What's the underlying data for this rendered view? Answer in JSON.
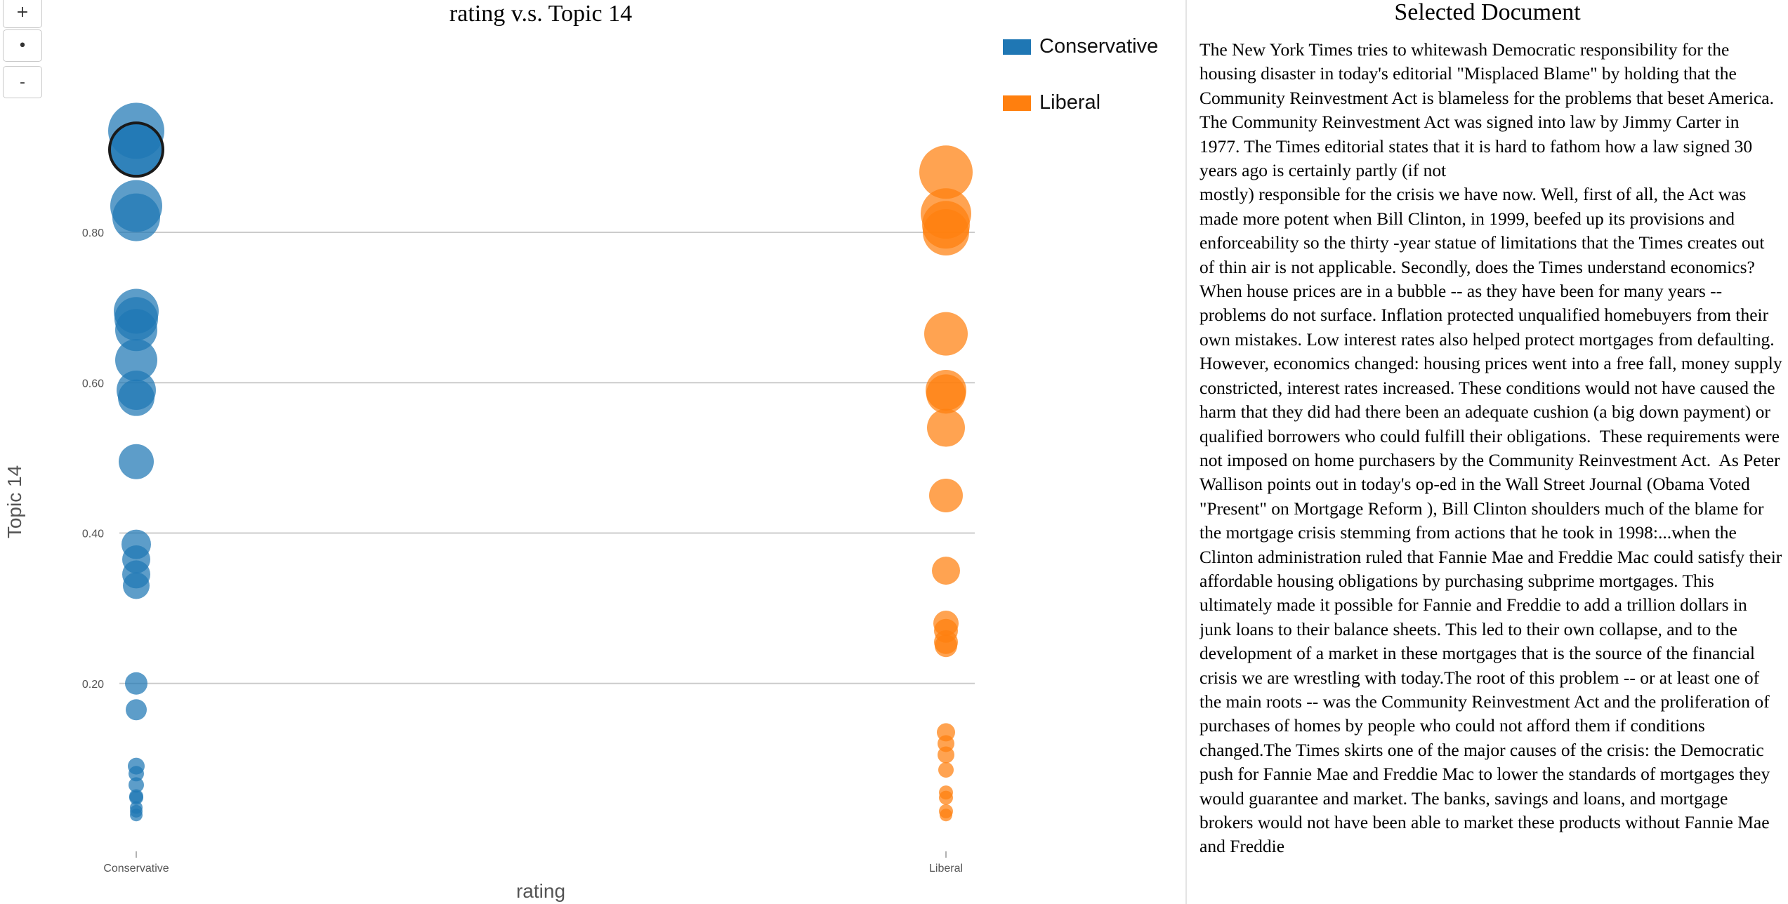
{
  "zoom_controls": {
    "zoom_in": "+",
    "reset": "•",
    "zoom_out": "-"
  },
  "chart_data": {
    "type": "scatter",
    "title": "rating v.s. Topic 14",
    "xlabel": "rating",
    "ylabel": "Topic 14",
    "categories": [
      "Conservative",
      "Liberal"
    ],
    "yticks": [
      "0.20",
      "0.40",
      "0.60",
      "0.80"
    ],
    "ylim": [
      0,
      1.02
    ],
    "grid": "horizontal",
    "legend_position": "top-right",
    "series": [
      {
        "name": "Conservative",
        "color": "#1f77b4",
        "category": "Conservative",
        "points": [
          {
            "y": 0.935,
            "size": 40
          },
          {
            "y": 0.91,
            "size": 38,
            "selected": true
          },
          {
            "y": 0.835,
            "size": 37
          },
          {
            "y": 0.82,
            "size": 34
          },
          {
            "y": 0.695,
            "size": 32
          },
          {
            "y": 0.685,
            "size": 31
          },
          {
            "y": 0.67,
            "size": 30
          },
          {
            "y": 0.63,
            "size": 30
          },
          {
            "y": 0.59,
            "size": 28
          },
          {
            "y": 0.58,
            "size": 26
          },
          {
            "y": 0.495,
            "size": 25
          },
          {
            "y": 0.385,
            "size": 21
          },
          {
            "y": 0.365,
            "size": 20
          },
          {
            "y": 0.345,
            "size": 20
          },
          {
            "y": 0.33,
            "size": 19
          },
          {
            "y": 0.2,
            "size": 16
          },
          {
            "y": 0.165,
            "size": 15
          },
          {
            "y": 0.09,
            "size": 12
          },
          {
            "y": 0.08,
            "size": 11
          },
          {
            "y": 0.065,
            "size": 11
          },
          {
            "y": 0.05,
            "size": 10
          },
          {
            "y": 0.048,
            "size": 10
          },
          {
            "y": 0.035,
            "size": 9
          },
          {
            "y": 0.03,
            "size": 9
          },
          {
            "y": 0.025,
            "size": 9
          }
        ]
      },
      {
        "name": "Liberal",
        "color": "#ff7f0e",
        "category": "Liberal",
        "points": [
          {
            "y": 0.88,
            "size": 38
          },
          {
            "y": 0.825,
            "size": 36
          },
          {
            "y": 0.81,
            "size": 34
          },
          {
            "y": 0.8,
            "size": 33
          },
          {
            "y": 0.665,
            "size": 31
          },
          {
            "y": 0.59,
            "size": 29
          },
          {
            "y": 0.585,
            "size": 28
          },
          {
            "y": 0.54,
            "size": 27
          },
          {
            "y": 0.45,
            "size": 24
          },
          {
            "y": 0.35,
            "size": 20
          },
          {
            "y": 0.28,
            "size": 18
          },
          {
            "y": 0.27,
            "size": 17
          },
          {
            "y": 0.255,
            "size": 17
          },
          {
            "y": 0.25,
            "size": 16
          },
          {
            "y": 0.135,
            "size": 13
          },
          {
            "y": 0.12,
            "size": 12
          },
          {
            "y": 0.105,
            "size": 12
          },
          {
            "y": 0.085,
            "size": 11
          },
          {
            "y": 0.055,
            "size": 10
          },
          {
            "y": 0.048,
            "size": 10
          },
          {
            "y": 0.03,
            "size": 10
          },
          {
            "y": 0.025,
            "size": 9
          }
        ]
      }
    ]
  },
  "document_panel": {
    "title": "Selected Document",
    "text": "The New York Times tries to whitewash Democratic responsibility for the housing disaster in today's editorial \"Misplaced Blame\" by holding that the Community Reinvestment Act is blameless for the problems that beset America. The Community Reinvestment Act was signed into law by Jimmy Carter in 1977. The Times editorial states that it is hard to fathom how a law signed 30 years ago is certainly partly (if not\nmostly) responsible for the crisis we have now. Well, first of all, the Act was made more potent when Bill Clinton, in 1999, beefed up its provisions and enforceability so the thirty -year statue of limitations that the Times creates out of thin air is not applicable. Secondly, does the Times understand economics? When house prices are in a bubble -- as they have been for many years -- problems do not surface. Inflation protected unqualified homebuyers from their own mistakes. Low interest rates also helped protect mortgages from defaulting. However, economics changed: housing prices went into a free fall, money supply constricted, interest rates increased. These conditions would not have caused the harm that they did had there been an adequate cushion (a big down payment) or qualified borrowers who could fulfill their obligations.  These requirements were not imposed on home purchasers by the Community Reinvestment Act.  As Peter Wallison points out in today's op-ed in the Wall Street Journal (Obama Voted \"Present\" on Mortgage Reform ), Bill Clinton shoulders much of the blame for the mortgage crisis stemming from actions that he took in 1998:...when the Clinton administration ruled that Fannie Mae and Freddie Mac could satisfy their affordable housing obligations by purchasing subprime mortgages. This ultimately made it possible for Fannie and Freddie to add a trillion dollars in junk loans to their balance sheets. This led to their own collapse, and to the development of a market in these mortgages that is the source of the financial crisis we are wrestling with today.The root of this problem -- or at least one of the main roots -- was the Community Reinvestment Act and the proliferation of purchases of homes by people who could not afford them if conditions changed.The Times skirts one of the major causes of the crisis: the Democratic push for Fannie Mae and Freddie Mac to lower the standards of mortgages they would guarantee and market. The banks, savings and loans, and mortgage brokers would not have been able to market these products without Fannie Mae and Freddie"
  }
}
